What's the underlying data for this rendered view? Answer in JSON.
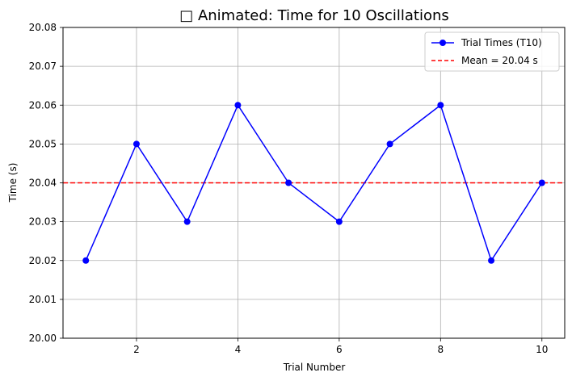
{
  "chart_data": {
    "type": "line",
    "title": "□ Animated: Time for 10 Oscillations",
    "xlabel": "Trial Number",
    "ylabel": "Time (s)",
    "xlim": [
      0.55,
      10.45
    ],
    "ylim": [
      20.0,
      20.08
    ],
    "xticks": [
      2,
      4,
      6,
      8,
      10
    ],
    "yticks": [
      20.0,
      20.01,
      20.02,
      20.03,
      20.04,
      20.05,
      20.06,
      20.07,
      20.08
    ],
    "grid": true,
    "legend_position": "top-right",
    "series": [
      {
        "name": "Trial Times (T10)",
        "color": "#0000ff",
        "marker": "circle",
        "x": [
          1,
          2,
          3,
          4,
          5,
          6,
          7,
          8,
          9,
          10
        ],
        "y": [
          20.02,
          20.05,
          20.03,
          20.06,
          20.04,
          20.03,
          20.05,
          20.06,
          20.02,
          20.04
        ]
      }
    ],
    "reference_lines": [
      {
        "name": "Mean = 20.04 s",
        "y": 20.04,
        "color": "#ff0000",
        "style": "dashed"
      }
    ]
  }
}
